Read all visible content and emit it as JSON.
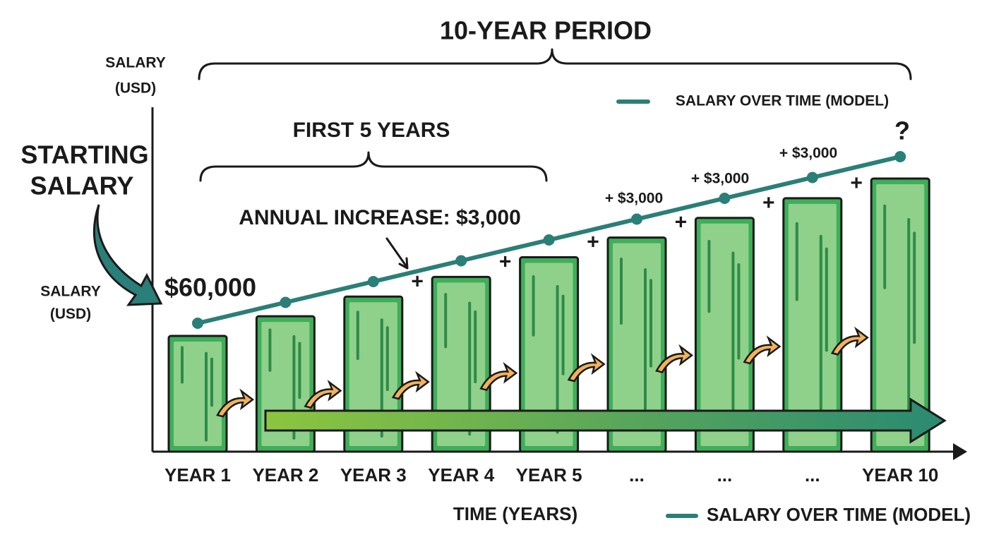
{
  "chart_data": {
    "type": "bar",
    "title": "10-YEAR PERIOD",
    "subtitle": "FIRST 5 YEARS",
    "y_label": [
      "SALARY",
      "(USD)"
    ],
    "side_label": [
      "SALARY",
      "(USD)"
    ],
    "starting_label": [
      "STARTING",
      "SALARY"
    ],
    "x_label": "TIME (YEARS)",
    "categories": [
      "YEAR 1",
      "YEAR 2",
      "YEAR 3",
      "YEAR 4",
      "YEAR 5",
      "...",
      "...",
      "...",
      "YEAR 10"
    ],
    "series": [
      {
        "name": "SALARY OVER TIME (MODEL)",
        "color": "#2a7f78",
        "values": [
          60000,
          63000,
          66000,
          69000,
          72000,
          75000,
          78000,
          81000,
          84000
        ]
      }
    ],
    "bar_color": "#8fd18a",
    "annotations": {
      "increase": "ANNUAL INCREASE: $3,000",
      "start_value": "$60,000",
      "step_labels": [
        "+ $3,000",
        "+ $3,000",
        "+ $3,000"
      ],
      "question": "?",
      "plus": "+"
    }
  }
}
